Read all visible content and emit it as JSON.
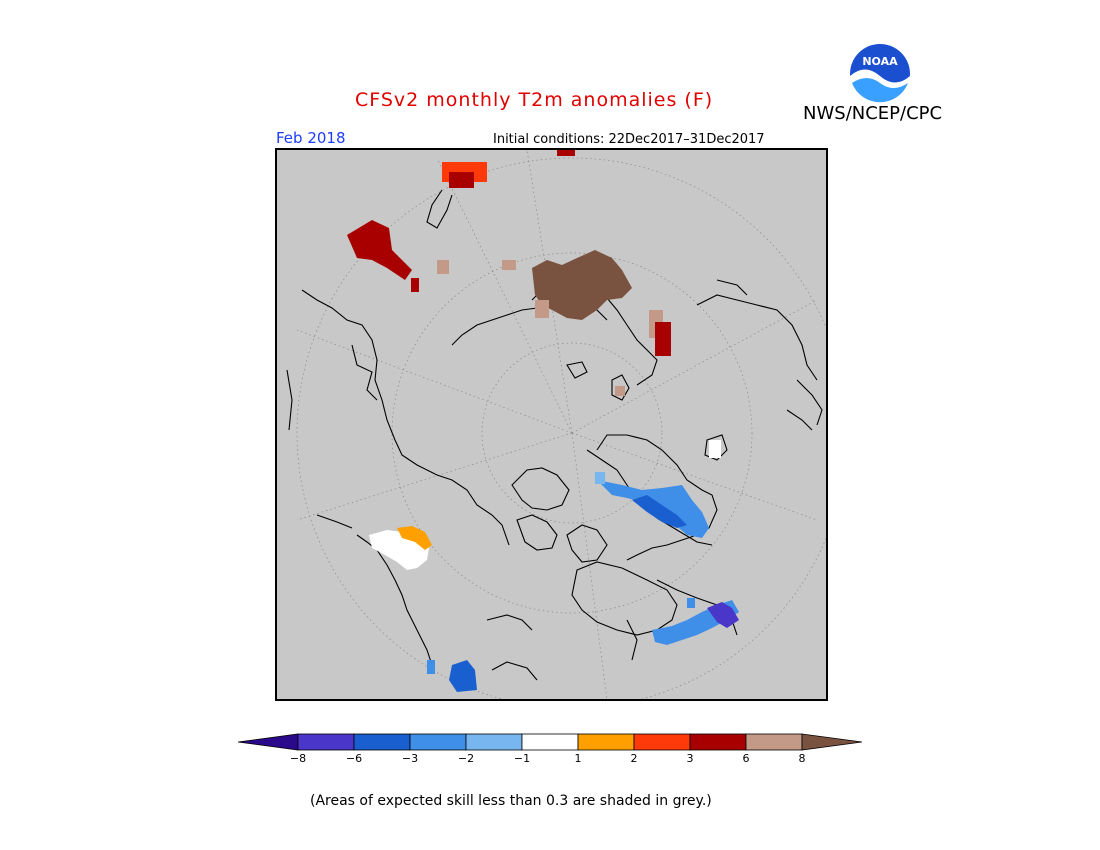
{
  "title": "CFSv2 monthly T2m anomalies (F)",
  "agency": "NWS/NCEP/CPC",
  "logo_text": "NOAA",
  "month": "Feb 2018",
  "initial_conditions": "Initial conditions: 22Dec2017–31Dec2017",
  "colorbar": {
    "ticks": [
      "−8",
      "−6",
      "−3",
      "−2",
      "−1",
      "1",
      "2",
      "3",
      "6",
      "8"
    ],
    "colors": [
      "#2a0a8a",
      "#4a36c8",
      "#1a5fd0",
      "#3f8ee8",
      "#78b6f0",
      "#ffffff",
      "#ffa000",
      "#ff3a0a",
      "#a80000",
      "#c39a88",
      "#7a5240"
    ]
  },
  "note": "(Areas of expected skill less than 0.3 are shaded in grey.)"
}
